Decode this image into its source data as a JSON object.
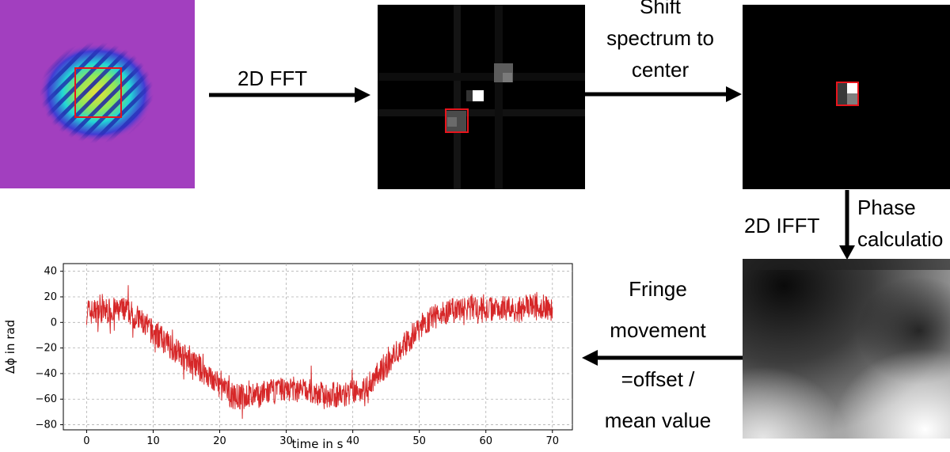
{
  "steps": {
    "fft": "2D FFT",
    "shift_lines": [
      "Shift",
      "spectrum to",
      "center"
    ],
    "ifft": "2D IFFT",
    "phase_lines": [
      "Phase",
      "calculatio"
    ],
    "fringe_lines": [
      "Fringe",
      "movement",
      "=offset /",
      "mean value"
    ]
  },
  "colors": {
    "roi_box": "#e8141c",
    "line": "#d62728",
    "interferogram_bg": "#a23fbf",
    "spectrum_bg": "#000000"
  },
  "chart_data": {
    "type": "line",
    "xlabel": "time in s",
    "ylabel": "Δϕ in rad",
    "xlim": [
      -3.5,
      73
    ],
    "ylim": [
      -84,
      46
    ],
    "xticks": [
      0,
      10,
      20,
      30,
      40,
      50,
      60,
      70
    ],
    "yticks": [
      40,
      20,
      0,
      -20,
      -40,
      -60,
      -80
    ],
    "grid": true,
    "series": [
      {
        "x": [
          0,
          3,
          6,
          8,
          10,
          12,
          15,
          18,
          20,
          22,
          25,
          27,
          30,
          33,
          35,
          38,
          40,
          42,
          44,
          46,
          48,
          50,
          52,
          54,
          56,
          58,
          60,
          62,
          65,
          68,
          70
        ],
        "values": [
          8,
          9,
          10,
          2,
          -8,
          -16,
          -28,
          -40,
          -50,
          -58,
          -58,
          -55,
          -52,
          -53,
          -56,
          -57,
          -55,
          -50,
          -40,
          -28,
          -16,
          -4,
          4,
          8,
          10,
          12,
          10,
          12,
          10,
          14,
          10
        ]
      }
    ]
  }
}
